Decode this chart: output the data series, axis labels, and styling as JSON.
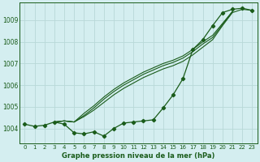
{
  "title": "Graphe pression niveau de la mer (hPa)",
  "background_color": "#d4eef0",
  "grid_color": "#b8d8d8",
  "line_color": "#1a5c1a",
  "xlim": [
    -0.5,
    23.5
  ],
  "ylim": [
    1003.3,
    1009.8
  ],
  "yticks": [
    1004,
    1005,
    1006,
    1007,
    1008,
    1009
  ],
  "xticks": [
    0,
    1,
    2,
    3,
    4,
    5,
    6,
    7,
    8,
    9,
    10,
    11,
    12,
    13,
    14,
    15,
    16,
    17,
    18,
    19,
    20,
    21,
    22,
    23
  ],
  "series_main_x": [
    0,
    1,
    2,
    3,
    4,
    5,
    6,
    7,
    8,
    9,
    10,
    11,
    12,
    13,
    14,
    15,
    16,
    17,
    18,
    19,
    20,
    21,
    22,
    23
  ],
  "series_main_y": [
    1004.2,
    1004.1,
    1004.15,
    1004.3,
    1004.2,
    1003.8,
    1003.75,
    1003.85,
    1003.65,
    1004.0,
    1004.25,
    1004.3,
    1004.35,
    1004.4,
    1004.95,
    1005.55,
    1006.3,
    1007.65,
    1008.1,
    1008.75,
    1009.35,
    1009.5,
    1009.55,
    1009.45
  ],
  "series_upper": [
    {
      "x": [
        3,
        4,
        5,
        6,
        7,
        8,
        9,
        10,
        11,
        12,
        13,
        14,
        15,
        16,
        17,
        18,
        19,
        20,
        21,
        22,
        23
      ],
      "y": [
        1004.3,
        1004.35,
        1004.3,
        1004.55,
        1004.85,
        1005.2,
        1005.55,
        1005.85,
        1006.1,
        1006.35,
        1006.55,
        1006.75,
        1006.9,
        1007.1,
        1007.4,
        1007.75,
        1008.1,
        1008.75,
        1009.35,
        1009.5,
        1009.45
      ]
    },
    {
      "x": [
        3,
        4,
        5,
        6,
        7,
        8,
        9,
        10,
        11,
        12,
        13,
        14,
        15,
        16,
        17,
        18,
        19,
        20,
        21
      ],
      "y": [
        1004.3,
        1004.35,
        1004.3,
        1004.6,
        1004.95,
        1005.35,
        1005.7,
        1006.0,
        1006.25,
        1006.5,
        1006.7,
        1006.9,
        1007.05,
        1007.25,
        1007.55,
        1007.9,
        1008.2,
        1008.8,
        1009.4
      ]
    },
    {
      "x": [
        3,
        4,
        5,
        6,
        7,
        8,
        9,
        10,
        11,
        12,
        13,
        14,
        15,
        16,
        17,
        18,
        19,
        20,
        21
      ],
      "y": [
        1004.3,
        1004.35,
        1004.3,
        1004.7,
        1005.05,
        1005.45,
        1005.8,
        1006.1,
        1006.35,
        1006.6,
        1006.8,
        1007.0,
        1007.15,
        1007.35,
        1007.65,
        1008.0,
        1008.3,
        1008.85,
        1009.4
      ]
    }
  ]
}
